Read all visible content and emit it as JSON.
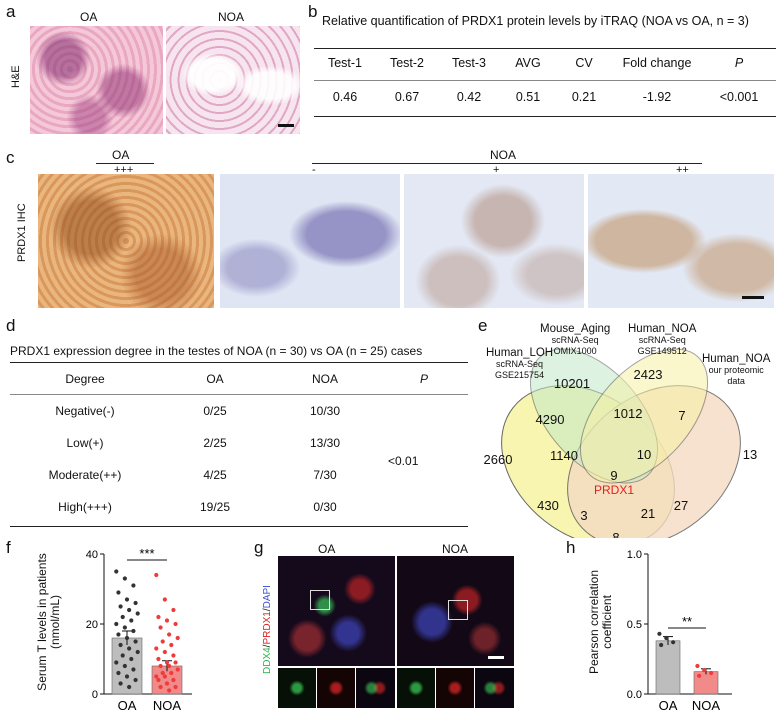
{
  "panel_letters": {
    "a": "a",
    "b": "b",
    "c": "c",
    "d": "d",
    "e": "e",
    "f": "f",
    "g": "g",
    "h": "h"
  },
  "panel_a": {
    "oa": "OA",
    "noa": "NOA",
    "side": "H&E"
  },
  "panel_b": {
    "title": "Relative quantification of PRDX1 protein levels by iTRAQ (NOA vs OA, n = 3)",
    "headers": [
      "Test-1",
      "Test-2",
      "Test-3",
      "AVG",
      "CV",
      "Fold change",
      "P"
    ],
    "values": [
      "0.46",
      "0.67",
      "0.42",
      "0.51",
      "0.21",
      "-1.92",
      "<0.001"
    ]
  },
  "panel_c": {
    "side": "PRDX1 IHC",
    "oa": "OA",
    "noa": "NOA",
    "oa_grade": "+++",
    "noa_grades": [
      "-",
      "+",
      "++"
    ]
  },
  "panel_d": {
    "title": "PRDX1 expression degree in the testes of NOA (n = 30) vs OA (n = 25) cases",
    "headers": [
      "Degree",
      "OA",
      "NOA",
      "P"
    ],
    "rows": [
      [
        "Negative(-)",
        "0/25",
        "10/30"
      ],
      [
        "Low(+)",
        "2/25",
        "13/30"
      ],
      [
        "Moderate(++)",
        "4/25",
        "7/30"
      ],
      [
        "High(+++)",
        "19/25",
        "0/30"
      ]
    ],
    "p": "<0.01"
  },
  "panel_e": {
    "sets": [
      {
        "name": "Human_LOH",
        "sub1": "scRNA-Seq",
        "sub2": "GSE215754",
        "color": "#f7f4a8"
      },
      {
        "name": "Mouse_Aging",
        "sub1": "scRNA-Seq",
        "sub2": "OMIX1000",
        "color": "#c2e8c8"
      },
      {
        "name": "Human_NOA",
        "sub1": "scRNA-Seq",
        "sub2": "GSE149512",
        "color": "#f6f1a6"
      },
      {
        "name": "Human_NOA",
        "sub1": "our proteomic",
        "sub2": "data",
        "color": "#f4dcc2"
      }
    ],
    "counts": [
      "10201",
      "2423",
      "4290",
      "1012",
      "7",
      "13",
      "2660",
      "1140",
      "10",
      "9",
      "430",
      "27",
      "3",
      "21",
      "8"
    ],
    "highlight": "PRDX1"
  },
  "panel_f": {
    "ylabel1": "Serum T levels in patients",
    "ylabel2": "(nmol/mL)",
    "sig": "***"
  },
  "panel_g": {
    "oa": "OA",
    "noa": "NOA",
    "stain_green": "DDX4",
    "stain_red": "PRDX1",
    "stain_blue": "DAPI"
  },
  "panel_h": {
    "ylabel1": "Pearson correlation",
    "ylabel2": "coefficient",
    "sig": "**"
  },
  "chart_data": [
    {
      "type": "bar",
      "panel": "f",
      "categories": [
        "OA",
        "NOA"
      ],
      "values": [
        16,
        8
      ],
      "ylim": [
        0,
        40
      ],
      "yticks": [
        0,
        20,
        40
      ],
      "ylabel": "Serum T levels in patients (nmol/mL)",
      "colors": [
        "#bdbdbd",
        "#f28a8a"
      ],
      "points": [
        [
          35,
          33,
          31,
          29,
          27,
          26,
          25,
          24,
          23,
          22,
          21,
          20,
          19,
          18,
          17,
          16,
          15,
          14,
          13,
          12,
          11,
          10,
          9,
          8,
          7,
          6,
          5,
          4,
          3,
          2
        ],
        [
          34,
          27,
          24,
          22,
          21,
          20,
          19,
          17,
          16,
          15,
          14,
          13,
          12,
          11,
          10,
          9,
          9,
          8,
          8,
          7,
          6,
          6,
          5,
          5,
          4,
          4,
          3,
          2,
          2,
          1
        ]
      ],
      "errors": [
        2,
        1.5
      ],
      "significance": "***"
    },
    {
      "type": "bar",
      "panel": "h",
      "categories": [
        "OA",
        "NOA"
      ],
      "values": [
        0.38,
        0.16
      ],
      "ylim": [
        0,
        1.0
      ],
      "yticks": [
        0.0,
        0.5,
        1.0
      ],
      "ylabel": "Pearson correlation coefficient",
      "colors": [
        "#bdbdbd",
        "#f28a8a"
      ],
      "points": [
        [
          0.43,
          0.4,
          0.37,
          0.35
        ],
        [
          0.2,
          0.17,
          0.15,
          0.13
        ]
      ],
      "errors": [
        0.03,
        0.02
      ],
      "significance": "**"
    }
  ]
}
